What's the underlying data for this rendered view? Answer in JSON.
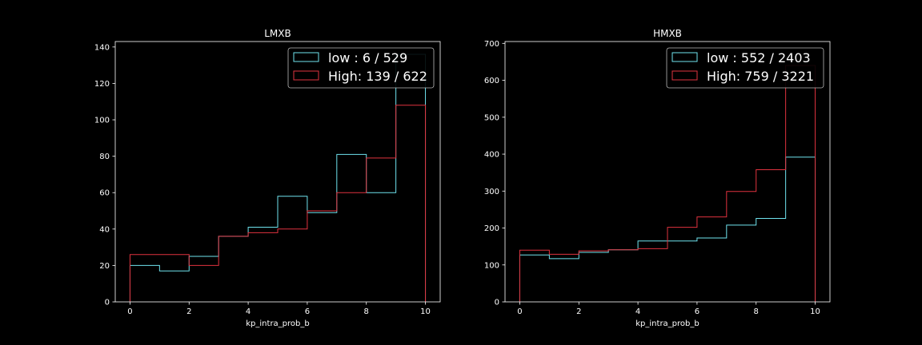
{
  "chart_data": [
    {
      "type": "histogram-step",
      "title": "LMXB",
      "xlabel": "kp_intra_prob_b",
      "ylabel": "",
      "xlim": [
        -0.5,
        10.5
      ],
      "ylim": [
        0,
        143
      ],
      "xticks": [
        0,
        2,
        4,
        6,
        8,
        10
      ],
      "yticks": [
        0,
        20,
        40,
        60,
        80,
        100,
        120,
        140
      ],
      "bin_edges": [
        0,
        1,
        2,
        3,
        4,
        5,
        6,
        7,
        8,
        9,
        10
      ],
      "legend_position": "upper right",
      "series": [
        {
          "name": "low : 6 / 529",
          "color": "#6fe3ee",
          "values": [
            20,
            17,
            25,
            36,
            41,
            58,
            49,
            81,
            60,
            136
          ]
        },
        {
          "name": "High: 139 / 622",
          "color": "#e0333f",
          "values": [
            26,
            26,
            20,
            36,
            38,
            40,
            50,
            60,
            79,
            108
          ]
        }
      ]
    },
    {
      "type": "histogram-step",
      "title": "HMXB",
      "xlabel": "kp_intra_prob_b",
      "ylabel": "",
      "xlim": [
        -0.5,
        10.5
      ],
      "ylim": [
        0,
        705
      ],
      "xticks": [
        0,
        2,
        4,
        6,
        8,
        10
      ],
      "yticks": [
        0,
        100,
        200,
        300,
        400,
        500,
        600,
        700
      ],
      "bin_edges": [
        0,
        1,
        2,
        3,
        4,
        5,
        6,
        7,
        8,
        9,
        10
      ],
      "legend_position": "upper right",
      "series": [
        {
          "name": "low : 552 / 2403",
          "color": "#6fe3ee",
          "values": [
            127,
            117,
            134,
            141,
            165,
            165,
            173,
            208,
            226,
            392
          ]
        },
        {
          "name": "High: 759 / 3221",
          "color": "#e0333f",
          "values": [
            140,
            129,
            138,
            141,
            144,
            202,
            230,
            299,
            358,
            640
          ]
        }
      ]
    }
  ]
}
